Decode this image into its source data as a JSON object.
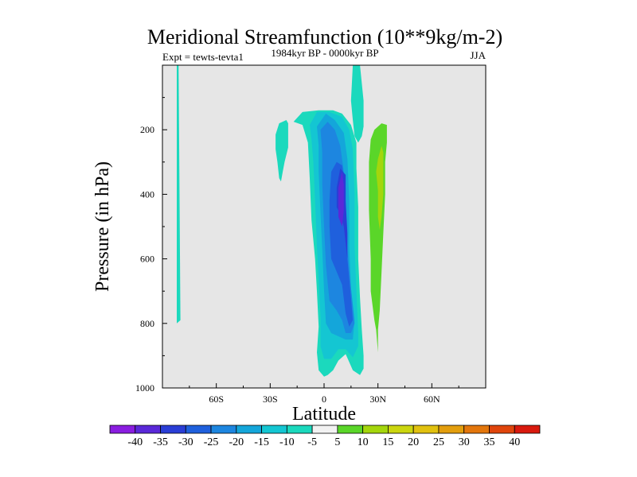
{
  "chart_data": {
    "type": "contour",
    "title": "Meridional Streamfunction (10**9kg/m-2)",
    "subtitle": "1984kyr BP - 0000kyr BP",
    "left_label": "Expt = tewts-tevta1",
    "right_label": "JJA",
    "xlabel": "Latitude",
    "ylabel": "Pressure (in hPa)",
    "xlim": [
      -90,
      90
    ],
    "ylim": [
      1000,
      0
    ],
    "x_ticks": [
      {
        "value": -60,
        "label": "60S"
      },
      {
        "value": -30,
        "label": "30S"
      },
      {
        "value": 0,
        "label": "0"
      },
      {
        "value": 30,
        "label": "30N"
      },
      {
        "value": 60,
        "label": "60N"
      }
    ],
    "y_ticks": [
      {
        "value": 200,
        "label": "200"
      },
      {
        "value": 400,
        "label": "400"
      },
      {
        "value": 600,
        "label": "600"
      },
      {
        "value": 800,
        "label": "800"
      },
      {
        "value": 1000,
        "label": "1000"
      }
    ],
    "background_color": "#e6e6e6",
    "colorbar": {
      "labels": [
        "-40",
        "-35",
        "-30",
        "-25",
        "-20",
        "-15",
        "-10",
        "-5",
        "5",
        "10",
        "15",
        "20",
        "25",
        "30",
        "35",
        "40"
      ],
      "colors": [
        "#8a1de0",
        "#5a28d8",
        "#2a3ed6",
        "#1f60dd",
        "#1d86e0",
        "#14a6da",
        "#14c6d2",
        "#1bd9bd",
        "#f2f2f2",
        "#5ad629",
        "#a4d60c",
        "#cbd60f",
        "#e1c10f",
        "#e39e0d",
        "#e3760c",
        "#e0450c",
        "#d91a0e"
      ]
    },
    "regions": [
      {
        "name": "left-edge-strip",
        "level": "-5",
        "polygons": [
          [
            [
              -82,
              0
            ],
            [
              -81,
              0
            ],
            [
              -80,
              790
            ],
            [
              -82,
              800
            ]
          ]
        ]
      },
      {
        "name": "southern-blob",
        "level": "-5",
        "polygons": [
          [
            [
              -27,
              215
            ],
            [
              -25,
              180
            ],
            [
              -21,
              170
            ],
            [
              -20,
              180
            ],
            [
              -20,
              255
            ],
            [
              -22,
              300
            ],
            [
              -23,
              330
            ],
            [
              -24,
              360
            ],
            [
              -25,
              350
            ],
            [
              -26,
              300
            ],
            [
              -27,
              260
            ]
          ]
        ]
      },
      {
        "name": "main-cell",
        "level": "-5",
        "polygons": [
          [
            [
              -17,
              175
            ],
            [
              -12,
              145
            ],
            [
              -3,
              140
            ],
            [
              5,
              140
            ],
            [
              10,
              150
            ],
            [
              15,
              185
            ],
            [
              18,
              240
            ],
            [
              18,
              320
            ],
            [
              19,
              440
            ],
            [
              19,
              600
            ],
            [
              20,
              720
            ],
            [
              21,
              820
            ],
            [
              22,
              900
            ],
            [
              22,
              940
            ],
            [
              20,
              960
            ],
            [
              16,
              945
            ],
            [
              14,
              920
            ],
            [
              12,
              895
            ],
            [
              8,
              915
            ],
            [
              5,
              945
            ],
            [
              2,
              960
            ],
            [
              0,
              965
            ],
            [
              -3,
              945
            ],
            [
              -4,
              890
            ],
            [
              -3,
              810
            ],
            [
              -4,
              700
            ],
            [
              -5,
              600
            ],
            [
              -7,
              480
            ],
            [
              -8,
              350
            ],
            [
              -9,
              240
            ],
            [
              -12,
              185
            ]
          ]
        ]
      },
      {
        "name": "main-cell",
        "level": "-10",
        "polygons": [
          [
            [
              -8,
              185
            ],
            [
              -4,
              145
            ],
            [
              3,
              145
            ],
            [
              10,
              160
            ],
            [
              14,
              200
            ],
            [
              16,
              260
            ],
            [
              17,
              400
            ],
            [
              17,
              560
            ],
            [
              18,
              700
            ],
            [
              19,
              830
            ],
            [
              19,
              870
            ],
            [
              16,
              905
            ],
            [
              12,
              880
            ],
            [
              8,
              880
            ],
            [
              4,
              910
            ],
            [
              0,
              910
            ],
            [
              -2,
              870
            ],
            [
              -2,
              780
            ],
            [
              -3,
              660
            ],
            [
              -4,
              560
            ],
            [
              -5,
              420
            ],
            [
              -6,
              300
            ],
            [
              -7,
              230
            ]
          ]
        ]
      },
      {
        "name": "main-cell",
        "level": "-15",
        "polygons": [
          [
            [
              -4,
              190
            ],
            [
              1,
              150
            ],
            [
              6,
              170
            ],
            [
              11,
              210
            ],
            [
              13,
              290
            ],
            [
              14,
              420
            ],
            [
              14,
              560
            ],
            [
              15,
              690
            ],
            [
              17,
              790
            ],
            [
              16,
              850
            ],
            [
              12,
              850
            ],
            [
              8,
              840
            ],
            [
              4,
              830
            ],
            [
              1,
              800
            ],
            [
              0,
              700
            ],
            [
              -1,
              570
            ],
            [
              -2,
              460
            ],
            [
              -3,
              330
            ],
            [
              -3,
              250
            ]
          ]
        ]
      },
      {
        "name": "main-cell",
        "level": "-20",
        "polygons": [
          [
            [
              -2,
              200
            ],
            [
              2,
              175
            ],
            [
              6,
              200
            ],
            [
              9,
              250
            ],
            [
              11,
              330
            ],
            [
              12,
              440
            ],
            [
              13,
              570
            ],
            [
              15,
              690
            ],
            [
              17,
              800
            ],
            [
              15,
              830
            ],
            [
              12,
              830
            ],
            [
              10,
              790
            ],
            [
              7,
              760
            ],
            [
              3,
              730
            ],
            [
              1,
              620
            ],
            [
              0,
              500
            ],
            [
              -1,
              370
            ],
            [
              -1,
              270
            ]
          ]
        ]
      },
      {
        "name": "main-cell",
        "level": "-25",
        "polygons": [
          [
            [
              4,
              330
            ],
            [
              7,
              300
            ],
            [
              10,
              310
            ],
            [
              12,
              380
            ],
            [
              12,
              480
            ],
            [
              13,
              600
            ],
            [
              15,
              720
            ],
            [
              16,
              790
            ],
            [
              14,
              810
            ],
            [
              12,
              770
            ],
            [
              10,
              680
            ],
            [
              7,
              640
            ],
            [
              4,
              600
            ],
            [
              3,
              500
            ],
            [
              3,
              420
            ]
          ]
        ]
      },
      {
        "name": "main-cell",
        "level": "-30",
        "polygons": [
          [
            [
              7,
              380
            ],
            [
              9,
              320
            ],
            [
              12,
              340
            ],
            [
              12,
              420
            ],
            [
              13,
              520
            ],
            [
              13,
              600
            ],
            [
              11,
              500
            ],
            [
              9,
              460
            ],
            [
              7,
              440
            ]
          ]
        ]
      },
      {
        "name": "main-cell",
        "level": "-35",
        "polygons": [
          [
            [
              8,
              380
            ],
            [
              10,
              330
            ],
            [
              11,
              370
            ],
            [
              11,
              450
            ],
            [
              10,
              500
            ],
            [
              8,
              470
            ]
          ]
        ]
      },
      {
        "name": "upper-column",
        "level": "-5",
        "polygons": [
          [
            [
              16,
              0
            ],
            [
              20,
              0
            ],
            [
              22,
              110
            ],
            [
              22,
              190
            ],
            [
              21,
              220
            ],
            [
              19,
              240
            ],
            [
              17,
              220
            ],
            [
              16,
              170
            ],
            [
              15,
              110
            ]
          ]
        ]
      },
      {
        "name": "northern-cell",
        "level": "5",
        "polygons": [
          [
            [
              25,
              300
            ],
            [
              26,
              230
            ],
            [
              28,
              200
            ],
            [
              32,
              180
            ],
            [
              35,
              185
            ],
            [
              35,
              240
            ],
            [
              34,
              300
            ],
            [
              34,
              400
            ],
            [
              33,
              520
            ],
            [
              32,
              640
            ],
            [
              31,
              760
            ],
            [
              30,
              820
            ],
            [
              30,
              890
            ],
            [
              29,
              820
            ],
            [
              28,
              790
            ],
            [
              26,
              700
            ],
            [
              26,
              600
            ],
            [
              25,
              450
            ]
          ]
        ]
      },
      {
        "name": "northern-cell",
        "level": "10",
        "polygons": [
          [
            [
              29,
              330
            ],
            [
              30,
              290
            ],
            [
              32,
              250
            ],
            [
              33,
              270
            ],
            [
              33,
              340
            ],
            [
              33,
              400
            ],
            [
              32,
              470
            ],
            [
              31,
              510
            ],
            [
              30,
              470
            ],
            [
              30,
              390
            ]
          ]
        ]
      }
    ]
  }
}
